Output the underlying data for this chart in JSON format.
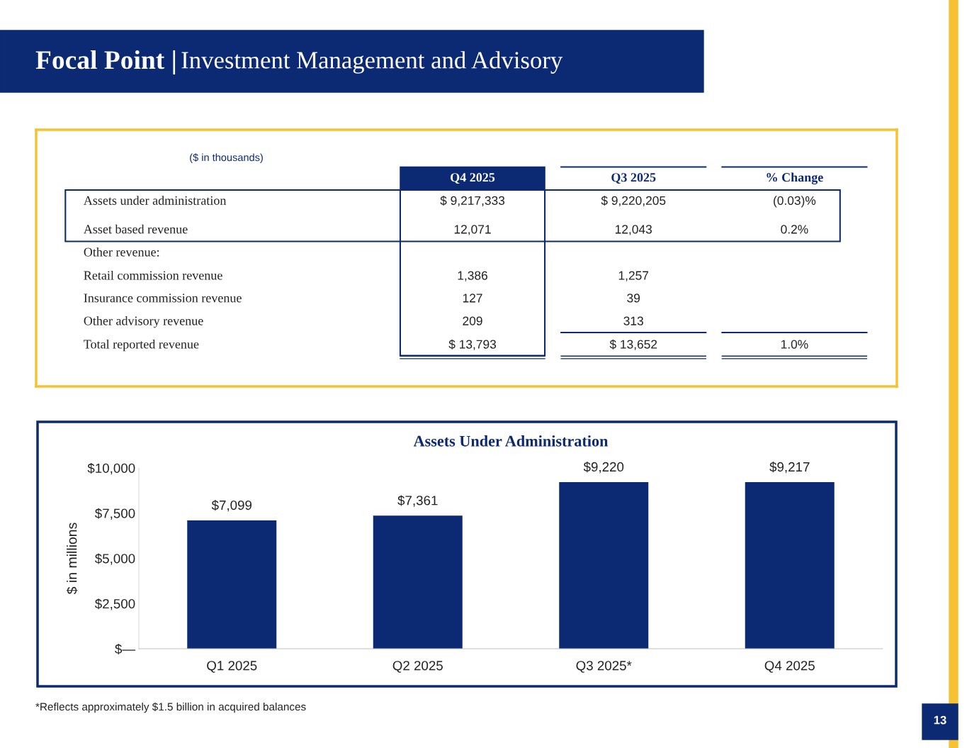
{
  "chart_data": [
    {
      "type": "other",
      "title": "Focal Point | Investment Management and Advisory",
      "subtitle": "($ in thousands)",
      "categories": [
        "Q4 2025",
        "Q3 2025",
        "% Change"
      ],
      "y_categories": [
        "Assets under administration",
        "Asset based revenue",
        "Other revenue:",
        "Retail commission revenue",
        "Insurance commission revenue",
        "Other advisory revenue",
        "Total reported revenue"
      ],
      "cell_labels": [
        [
          "$ 9,217,333",
          "$ 9,220,205",
          "(0.03)%"
        ],
        [
          "12,071",
          "12,043",
          "0.2%"
        ],
        [
          null,
          null,
          null
        ],
        [
          "1,386",
          "1,257",
          null
        ],
        [
          "127",
          "39",
          null
        ],
        [
          "209",
          "313",
          null
        ],
        [
          "$ 13,793",
          "$ 13,652",
          "1.0%"
        ]
      ],
      "annotations": [
        "13"
      ]
    },
    {
      "type": "bar",
      "title": "Assets Under Administration",
      "ylabel": "$ in millions",
      "categories": [
        "Q1 2025",
        "Q2 2025",
        "Q3 2025*",
        "Q4 2025"
      ],
      "values": [
        7099,
        7361,
        9220,
        9217
      ],
      "color": "#0c2a74",
      "value_labels": [
        "$7,099",
        "$7,361",
        "$9,220",
        "$9,217"
      ],
      "ylim": [
        0,
        10000
      ],
      "yticks": [
        {
          "value": 0,
          "label": "$—"
        },
        {
          "value": 2500,
          "label": "$2,500"
        },
        {
          "value": 5000,
          "label": "$5,000"
        },
        {
          "value": 7500,
          "label": "$7,500"
        },
        {
          "value": 10000,
          "label": "$10,000"
        }
      ],
      "grid": false,
      "legend": false,
      "annotations": [
        "*Reflects approximately $1.5 billion in acquired balances"
      ]
    }
  ]
}
